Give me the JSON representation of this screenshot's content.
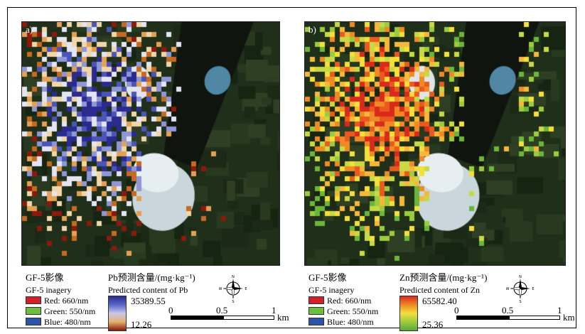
{
  "panels": [
    {
      "id": "a",
      "label": "a)",
      "legend": {
        "imagery_title_cn": "GF-5影像",
        "imagery_title_en": "GF-5 inagery",
        "bands": [
          {
            "label": "Red: 660/nm",
            "color": "#d2202a"
          },
          {
            "label": "Green: 550/nm",
            "color": "#6bbf3c"
          },
          {
            "label": "Blue: 480/nm",
            "color": "#2b54a7"
          }
        ],
        "content_title_cn": "Pb预测含量/(mg·kg⁻¹)",
        "content_title_en": "Predicted content of Pb",
        "max_value": "35389.55",
        "min_value": "12.26",
        "ramp_colors": [
          "#2b2b8f",
          "#5a66c9",
          "#c9c9e8",
          "#e6b06b",
          "#8b1a0c"
        ]
      },
      "scale": {
        "ticks": [
          "0",
          "0.5",
          "1"
        ],
        "unit": "km"
      },
      "compass": {
        "n": "N",
        "s": "S",
        "e": "E",
        "w": "W"
      }
    },
    {
      "id": "b",
      "label": "b)",
      "legend": {
        "imagery_title_cn": "GF-5影像",
        "imagery_title_en": "GF-5 inagery",
        "bands": [
          {
            "label": "Red: 660/nm",
            "color": "#d2202a"
          },
          {
            "label": "Green: 550/nm",
            "color": "#6bbf3c"
          },
          {
            "label": "Blue: 480/nm",
            "color": "#2b54a7"
          }
        ],
        "content_title_cn": "Zn预测含量/(mg·kg⁻¹)",
        "content_title_en": "Predicted content of Zn",
        "max_value": "65582.40",
        "min_value": "25.36",
        "ramp_colors": [
          "#d92a1c",
          "#f08a24",
          "#f3e03a",
          "#9bcc3e",
          "#5aa83a"
        ]
      },
      "scale": {
        "ticks": [
          "0",
          "0.5",
          "1"
        ],
        "unit": "km"
      },
      "compass": {
        "n": "N",
        "s": "S",
        "e": "E",
        "w": "W"
      }
    }
  ]
}
